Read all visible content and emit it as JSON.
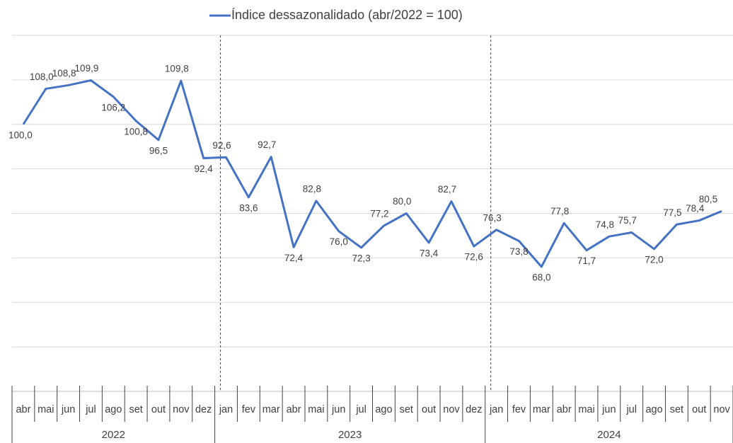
{
  "chart_data": {
    "type": "line",
    "categories": [
      "abr",
      "mai",
      "jun",
      "jul",
      "ago",
      "set",
      "out",
      "nov",
      "dez",
      "jan",
      "fev",
      "mar",
      "abr",
      "mai",
      "jun",
      "jul",
      "ago",
      "set",
      "out",
      "nov",
      "dez",
      "jan",
      "fev",
      "mar",
      "abr",
      "mai",
      "jun",
      "jul",
      "ago",
      "set",
      "out",
      "nov"
    ],
    "years": [
      "2022",
      "2023",
      "2024"
    ],
    "series": [
      {
        "name": "Índice dessazonalidado (abr/2022 = 100)",
        "color": "#4472c4",
        "values": [
          100.0,
          108.0,
          108.8,
          109.9,
          106.2,
          100.8,
          96.5,
          109.8,
          92.4,
          92.6,
          83.6,
          92.7,
          72.4,
          82.8,
          76.0,
          72.3,
          77.2,
          80.0,
          73.4,
          82.7,
          72.6,
          76.3,
          73.8,
          68.0,
          77.8,
          71.7,
          74.8,
          75.7,
          72.0,
          77.5,
          78.4,
          80.5
        ],
        "value_labels": [
          "100,0",
          "108,0",
          "108,8",
          "109,9",
          "106,2",
          "100,8",
          "96,5",
          "109,8",
          "92,4",
          "92,6",
          "83,6",
          "92,7",
          "72,4",
          "82,8",
          "76,0",
          "72,3",
          "77,2",
          "80,0",
          "73,4",
          "82,7",
          "72,6",
          "76,3",
          "73,8",
          "68,0",
          "77,8",
          "71,7",
          "74,8",
          "75,7",
          "72,0",
          "77,5",
          "78,4",
          "80,5"
        ]
      }
    ],
    "ylim": [
      40,
      120
    ],
    "yticks": [
      40,
      50,
      60,
      70,
      80,
      90,
      100,
      110,
      120
    ],
    "grid": true
  }
}
